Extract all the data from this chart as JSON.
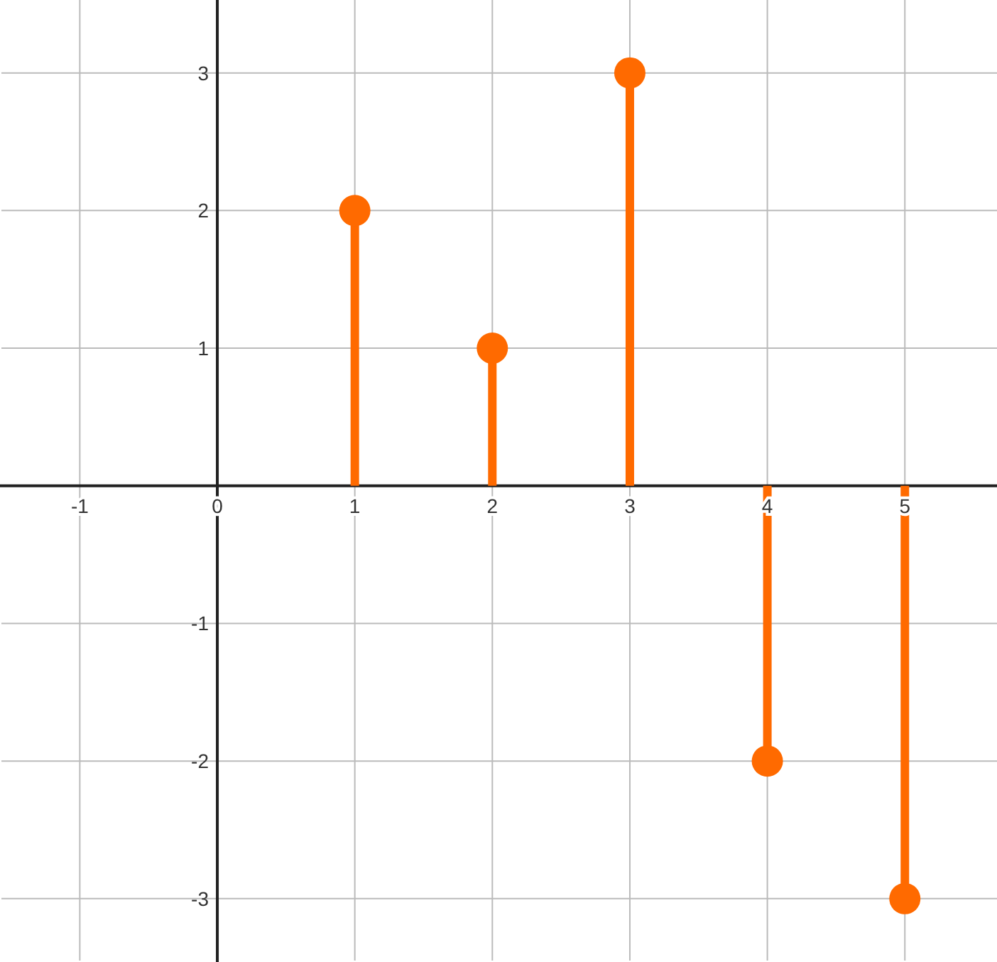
{
  "chart_data": {
    "type": "lollipop",
    "x": [
      1,
      2,
      3,
      4,
      5
    ],
    "values": [
      2,
      1,
      3,
      -2,
      -3
    ],
    "color": "#ff6a00",
    "marker": "circle",
    "xlim": [
      -1.57,
      5.67
    ],
    "ylim": [
      -3.45,
      3.53
    ],
    "xticks": [
      -1,
      0,
      1,
      2,
      3,
      4,
      5
    ],
    "yticks": [
      -3,
      -2,
      -1,
      1,
      2,
      3
    ],
    "grid": true
  }
}
